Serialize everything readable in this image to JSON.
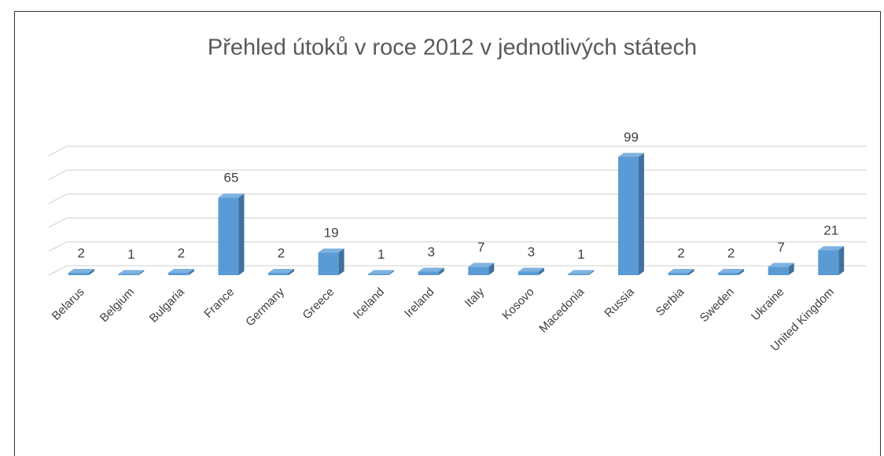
{
  "chart_data": {
    "type": "bar3d",
    "title": "Přehled útoků v roce 2012 v jednotlivých státech",
    "categories": [
      "Belarus",
      "Belgium",
      "Bulgaria",
      "France",
      "Germany",
      "Greece",
      "Iceland",
      "Ireland",
      "Italy",
      "Kosovo",
      "Macedonia",
      "Russia",
      "Serbia",
      "Sweden",
      "Ukraine",
      "United Kingdom"
    ],
    "values": [
      2,
      1,
      2,
      65,
      2,
      19,
      1,
      3,
      7,
      3,
      1,
      99,
      2,
      2,
      7,
      21
    ],
    "color": "#5b9bd5",
    "ylim": [
      0,
      100
    ],
    "yticks": [
      0,
      20,
      40,
      60,
      80,
      100
    ],
    "grid": true
  }
}
